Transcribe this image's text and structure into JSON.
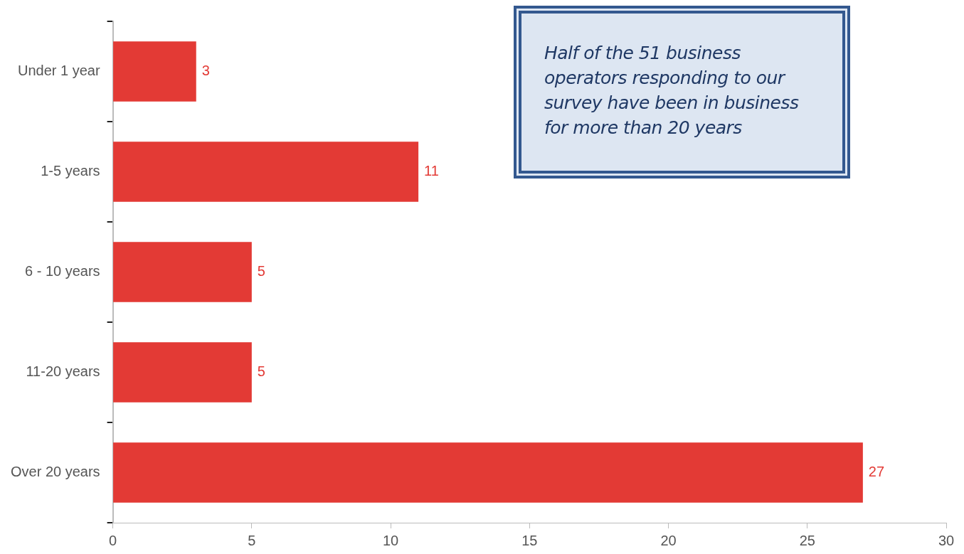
{
  "chart_data": {
    "type": "bar",
    "orientation": "horizontal",
    "categories": [
      "Under 1 year",
      "1-5 years",
      "6 - 10 years",
      "11-20 years",
      "Over 20 years"
    ],
    "values": [
      3,
      11,
      5,
      5,
      27
    ],
    "color": "#e33a35",
    "xlim": [
      0,
      30
    ],
    "xticks": [
      0,
      5,
      10,
      15,
      20,
      25,
      30
    ],
    "data_labels": true,
    "annotations": [
      "Half of the 51 business operators responding to our survey have been in business for more than 20 years"
    ]
  }
}
